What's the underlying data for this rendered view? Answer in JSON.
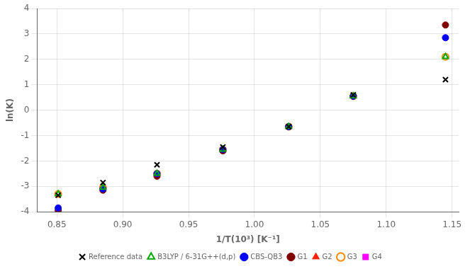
{
  "chart_data": {
    "type": "scatter",
    "x_label": "1/T(10³) [K⁻¹]",
    "y_label": "ln(K)",
    "x": [
      0.851,
      0.885,
      0.926,
      0.976,
      1.026,
      1.075,
      1.145
    ],
    "series": [
      {
        "name": "Reference data",
        "color": "black",
        "marker": "x",
        "values": [
          -3.35,
          -2.85,
          -2.15,
          -1.45,
          -0.65,
          0.6,
          1.2
        ]
      },
      {
        "name": "B3LYP / 6-31G++(d,p)",
        "color": "#00aa00",
        "marker": "triangle-open",
        "values": [
          -3.3,
          -3.05,
          -2.5,
          -1.55,
          -0.65,
          0.55,
          2.1
        ]
      },
      {
        "name": "CBS-QB3",
        "color": "#0000ff",
        "marker": "circle",
        "values": [
          -3.85,
          -3.1,
          -2.5,
          -1.55,
          -0.65,
          0.55,
          2.85
        ]
      },
      {
        "name": "G1",
        "color": "#800000",
        "marker": "circle",
        "values": [
          -3.95,
          -3.15,
          -2.6,
          -1.6,
          -0.65,
          0.55,
          3.35
        ]
      },
      {
        "name": "G2",
        "color": "#ff2000",
        "marker": "triangle",
        "values": [
          -3.9,
          -3.1,
          -2.55,
          -1.6,
          -0.65,
          0.57,
          2.85
        ]
      },
      {
        "name": "G3",
        "color": "#ff8800",
        "marker": "circle-open",
        "values": [
          -3.3,
          -3.05,
          -2.5,
          -1.55,
          -0.65,
          0.55,
          2.1
        ]
      },
      {
        "name": "G4",
        "color": "#ff00ff",
        "marker": "square",
        "values": [
          -3.85,
          -3.1,
          -2.55,
          -1.6,
          -0.65,
          0.55,
          2.85
        ]
      }
    ],
    "xlim": [
      0.835,
      1.155
    ],
    "ylim": [
      -4,
      4
    ],
    "xticks": [
      0.85,
      {
        "value": 0.9,
        "label": "0.90"
      },
      0.95,
      {
        "value": 1,
        "label": "1.00"
      },
      1.05,
      {
        "value": 1.1,
        "label": "1.10"
      },
      1.15
    ],
    "yticks": [
      -4,
      -3,
      -2,
      -1,
      0,
      1,
      2,
      3,
      4
    ],
    "grid": true,
    "legend": "bottom"
  }
}
